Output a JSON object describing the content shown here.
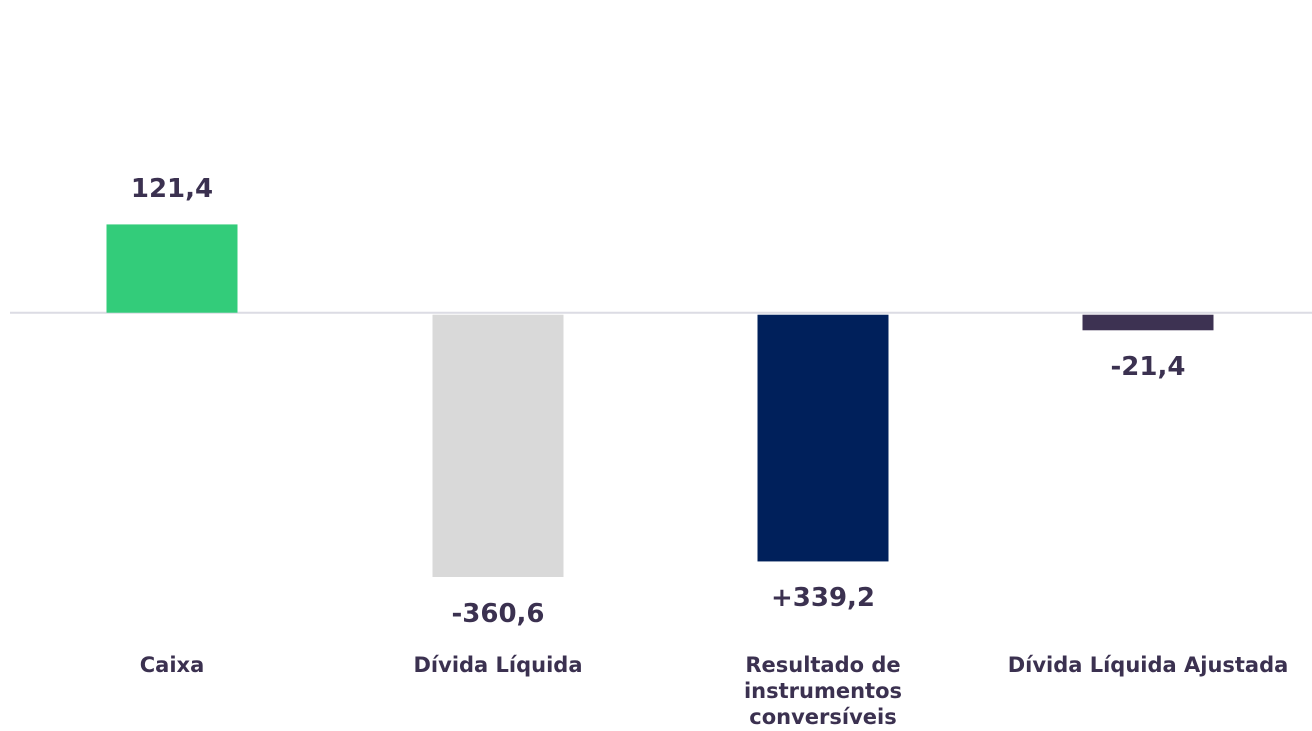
{
  "chart_data": {
    "type": "bar",
    "categories": [
      "Caixa",
      "Dívida Líquida",
      "Resultado de instrumentos conversíveis",
      "Dívida Líquida Ajustada"
    ],
    "values": [
      121.4,
      -360.6,
      339.2,
      -21.4
    ],
    "value_labels": [
      "121,4",
      "-360,6",
      "+339,2",
      "-21,4"
    ],
    "colors": [
      "#33cc7a",
      "#d9d9d9",
      "#00205b",
      "#3d3252"
    ]
  }
}
